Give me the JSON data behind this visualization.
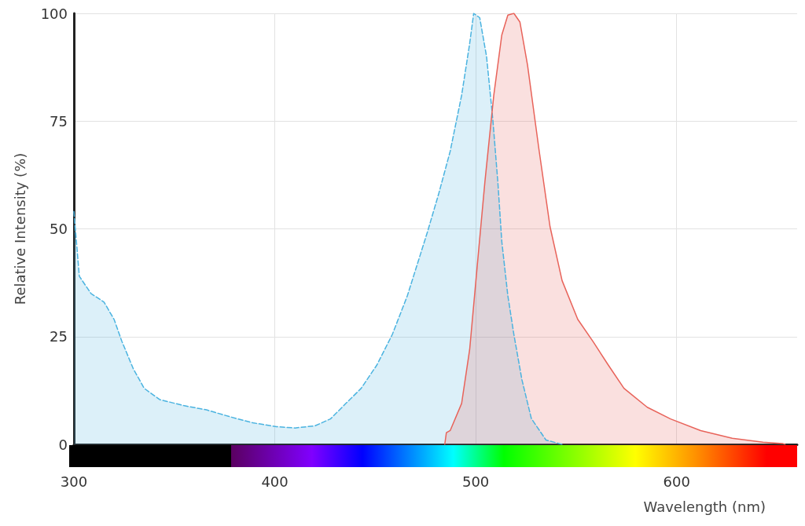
{
  "chart_data": {
    "type": "area",
    "xlabel": "Wavelength (nm)",
    "ylabel": "Relative Intensity (%)",
    "xlim": [
      300,
      660
    ],
    "xticks": [
      300,
      400,
      500,
      600
    ],
    "ylim": [
      0,
      100
    ],
    "yticks": [
      0,
      25,
      50,
      75,
      100
    ],
    "grid": true,
    "series": [
      {
        "color": "#4ab3e0",
        "line_style": "dashed",
        "x": [
          300,
          302.7,
          308.5,
          315,
          320,
          323.8,
          329.6,
          335,
          342.7,
          354.6,
          366,
          377.7,
          389,
          400.8,
          410,
          420,
          427.7,
          435.4,
          443,
          450.8,
          458.5,
          466,
          475.8,
          481.5,
          487.3,
          493,
          497,
          499,
          502,
          505.4,
          508.5,
          511,
          513,
          516,
          519,
          523,
          527.7,
          535,
          543
        ],
        "values": [
          54,
          39,
          35,
          33,
          29,
          24,
          17.5,
          13,
          10.4,
          9,
          8,
          6.4,
          5,
          4.1,
          3.8,
          4.3,
          5.9,
          9.5,
          13,
          18.4,
          25.5,
          34.5,
          49,
          58,
          68,
          81,
          93,
          100,
          99,
          90,
          75.5,
          61,
          47,
          34.5,
          25.5,
          15,
          6,
          1,
          0
        ]
      },
      {
        "color": "#e8635a",
        "line_style": "solid",
        "x": [
          484.6,
          485.4,
          487.3,
          493,
          497,
          500.8,
          504.6,
          509,
          513,
          516,
          519,
          522,
          525.8,
          531.5,
          537,
          543,
          550.8,
          558.5,
          566,
          573.8,
          585.4,
          597,
          612,
          627.7,
          643,
          652.7,
          654
        ],
        "values": [
          0,
          2.7,
          3.2,
          9.5,
          22,
          41.6,
          61,
          81,
          95,
          99.6,
          100,
          98,
          88,
          68.4,
          50.5,
          38,
          29,
          23.8,
          18.4,
          13,
          8.6,
          5.9,
          3.2,
          1.4,
          0.5,
          0.2,
          0
        ]
      }
    ]
  }
}
